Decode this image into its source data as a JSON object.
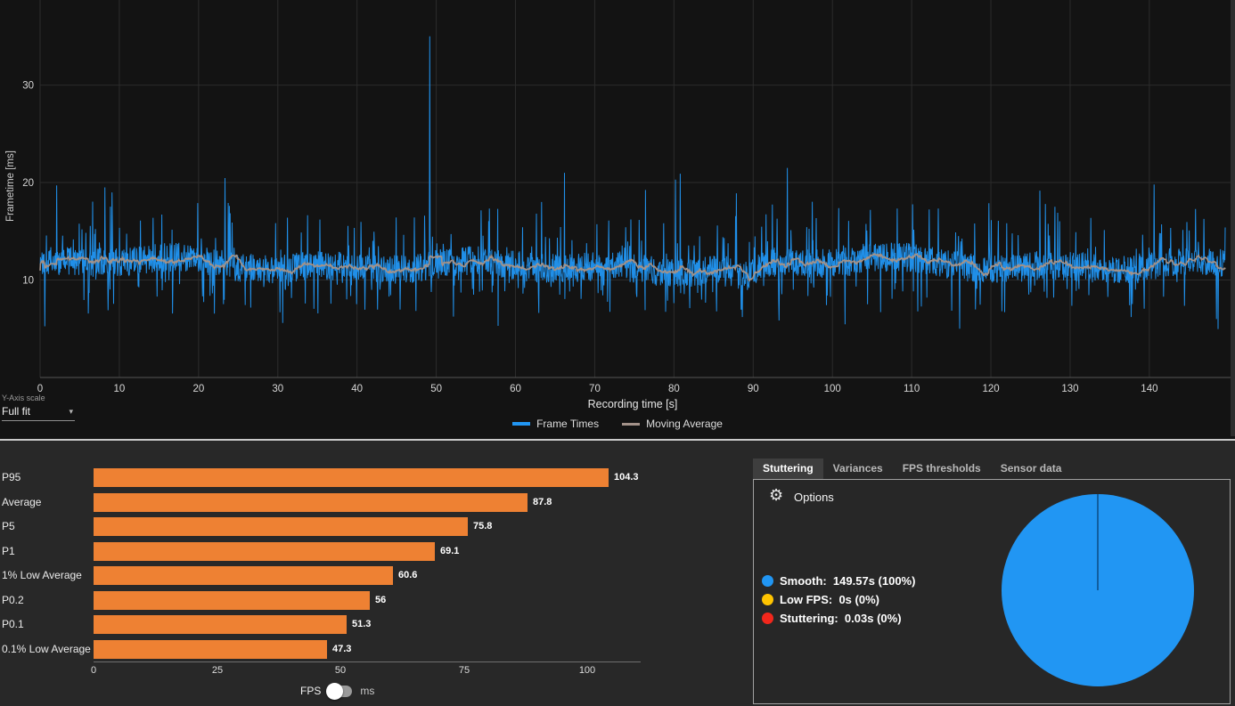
{
  "chart_data": [
    {
      "id": "frametimes",
      "type": "line",
      "title": "",
      "xlabel": "Recording time [s]",
      "ylabel": "Frametime [ms]",
      "xlim": [
        0,
        149.57
      ],
      "ylim": [
        0,
        38
      ],
      "x_ticks": [
        0,
        10,
        20,
        30,
        40,
        50,
        60,
        70,
        80,
        90,
        100,
        110,
        120,
        130,
        140
      ],
      "y_ticks": [
        10,
        20,
        30
      ],
      "grid": true,
      "legend_position": "bottom-center",
      "series": [
        {
          "name": "Frame Times",
          "color": "#2196f3",
          "style": "noisy-line",
          "baseline_ms": 11.35,
          "noise_band_ms": [
            9.5,
            14.5
          ],
          "notable_spikes": [
            [
              2.1,
              19.7
            ],
            [
              5.3,
              15.2
            ],
            [
              8.2,
              19.5
            ],
            [
              23.9,
              17.6
            ],
            [
              31.2,
              16.4
            ],
            [
              49.2,
              35.0
            ],
            [
              63.3,
              18.0
            ],
            [
              66.2,
              21.0
            ],
            [
              80.2,
              20.3
            ],
            [
              87.9,
              18.9
            ],
            [
              94.3,
              21.5
            ],
            [
              104.8,
              17.2
            ],
            [
              126.9,
              17.8
            ],
            [
              128.4,
              16.9
            ],
            [
              140.6,
              19.8
            ]
          ],
          "notable_dips": [
            [
              8.6,
              6.9
            ],
            [
              30.6,
              5.6
            ],
            [
              57.8,
              5.3
            ],
            [
              88.6,
              6.2
            ],
            [
              121.4,
              6.8
            ]
          ]
        },
        {
          "name": "Moving Average",
          "color": "#a39289",
          "style": "smooth-line",
          "baseline_ms": 11.4,
          "window_samples": 31
        }
      ]
    },
    {
      "id": "fps_percentiles",
      "type": "bar",
      "orientation": "horizontal",
      "categories": [
        "P95",
        "Average",
        "P5",
        "P1",
        "1% Low Average",
        "P0.2",
        "P0.1",
        "0.1% Low Average"
      ],
      "values": [
        104.3,
        87.8,
        75.8,
        69.1,
        60.6,
        56,
        51.3,
        47.3
      ],
      "value_labels": [
        "104.3",
        "87.8",
        "75.8",
        "69.1",
        "60.6",
        "56",
        "51.3",
        "47.3"
      ],
      "x_ticks": [
        0,
        25,
        50,
        75,
        100
      ],
      "xlim": [
        0,
        118
      ],
      "bar_color": "#ee8133",
      "unit": "FPS"
    },
    {
      "id": "stutter_pie",
      "type": "pie",
      "slices": [
        {
          "label": "Smooth",
          "duration": "149.57s",
          "percent": "100%",
          "value": 99.98,
          "color": "#2196f3"
        },
        {
          "label": "Low FPS",
          "duration": "0s",
          "percent": "0%",
          "value": 0.0,
          "color": "#ffc400"
        },
        {
          "label": "Stuttering",
          "duration": "0.03s",
          "percent": "0%",
          "value": 0.02,
          "color": "#f2271c"
        }
      ]
    }
  ],
  "y_axis_scale": {
    "caption": "Y-Axis scale",
    "value": "Full fit",
    "caret_icon": "▾"
  },
  "unit_toggle": {
    "left": "FPS",
    "right": "ms",
    "selected": "FPS"
  },
  "right_panel": {
    "tabs": [
      {
        "label": "Stuttering",
        "active": true
      },
      {
        "label": "Variances",
        "active": false
      },
      {
        "label": "FPS thresholds",
        "active": false
      },
      {
        "label": "Sensor data",
        "active": false
      }
    ],
    "gear_icon": "⚙",
    "options_label": "Options",
    "legend_items": [
      {
        "label": "Smooth:",
        "value": "149.57s (100%)",
        "color": "#2196f3"
      },
      {
        "label": "Low FPS:",
        "value": "0s (0%)",
        "color": "#ffc400"
      },
      {
        "label": "Stuttering:",
        "value": "0.03s (0%)",
        "color": "#f2271c"
      }
    ]
  }
}
